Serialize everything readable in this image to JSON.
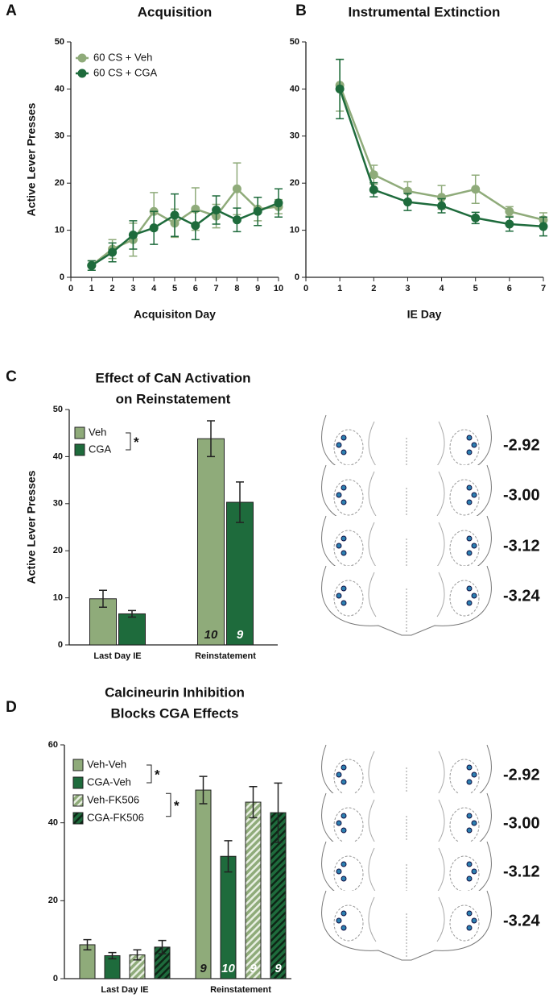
{
  "chart_data": [
    {
      "type": "line",
      "panel": "A",
      "title": "Acquisition",
      "x_label": "Acquisiton Day",
      "y_label": "Active Lever Presses",
      "x": [
        1,
        2,
        3,
        4,
        5,
        6,
        7,
        8,
        9,
        10
      ],
      "xlim": [
        0,
        10
      ],
      "xticks": [
        0,
        1,
        2,
        3,
        4,
        5,
        6,
        7,
        8,
        9,
        10
      ],
      "ylim": [
        0,
        50
      ],
      "yticks": [
        0,
        10,
        20,
        30,
        40,
        50
      ],
      "legend": "upper left",
      "series": [
        {
          "name": "60 CS + Veh",
          "color": "#8fab7a",
          "values": [
            2.5,
            6,
            8,
            14,
            11.5,
            14.5,
            13,
            18.8,
            14.5,
            15
          ],
          "errors": [
            1,
            2,
            3.5,
            4,
            3,
            4.5,
            2.5,
            5.5,
            2.5,
            1.5
          ]
        },
        {
          "name": "60 CS + CGA",
          "color": "#1e6b3c",
          "values": [
            2.5,
            5.3,
            9,
            10.5,
            13.2,
            11,
            14.3,
            12.2,
            14,
            15.8
          ],
          "errors": [
            1,
            2,
            3,
            3.5,
            4.5,
            3,
            3,
            2.5,
            3,
            3
          ]
        }
      ]
    },
    {
      "type": "line",
      "panel": "B",
      "title": "Instrumental Extinction",
      "x_label": "IE Day",
      "x": [
        1,
        2,
        3,
        4,
        5,
        6,
        7
      ],
      "xlim": [
        0,
        7
      ],
      "xticks": [
        0,
        1,
        2,
        3,
        4,
        5,
        6,
        7
      ],
      "ylim": [
        0,
        50
      ],
      "yticks": [
        0,
        10,
        20,
        30,
        40,
        50
      ],
      "series": [
        {
          "color": "#8fab7a",
          "values": [
            40.8,
            21.8,
            18.3,
            17,
            18.7,
            14,
            12.2
          ],
          "errors": [
            5.5,
            2,
            2,
            2.5,
            3,
            1,
            1.5
          ]
        },
        {
          "color": "#1e6b3c",
          "values": [
            40,
            18.6,
            16,
            15.2,
            12.6,
            11.3,
            10.8
          ],
          "errors": [
            6.3,
            1.5,
            1.8,
            1.5,
            1.2,
            1.5,
            2
          ]
        }
      ]
    },
    {
      "type": "bar",
      "panel": "C",
      "title": [
        "Effect of CaN Activation",
        "on  Reinstatement"
      ],
      "y_label": "Active Lever  Presses",
      "categories": [
        "Last Day IE",
        "Reinstatement"
      ],
      "ylim": [
        0,
        50
      ],
      "yticks": [
        0,
        10,
        20,
        30,
        40,
        50
      ],
      "legend": "upper left",
      "series": [
        {
          "name": "Veh",
          "color": "#8fab7a",
          "hatch": false,
          "values": [
            9.8,
            43.8
          ],
          "errors": [
            1.8,
            3.8
          ],
          "n_labels": [
            null,
            "10"
          ],
          "n_label_color": "#1a1a1a"
        },
        {
          "name": "CGA",
          "color": "#1e6b3c",
          "hatch": false,
          "values": [
            6.6,
            30.3
          ],
          "errors": [
            0.7,
            4.3
          ],
          "n_labels": [
            null,
            "9"
          ],
          "n_label_color": "#ffffff"
        }
      ],
      "annotations": [
        "*"
      ],
      "sections": [
        "-2.92",
        "-3.00",
        "-3.12",
        "-3.24"
      ]
    },
    {
      "type": "bar",
      "panel": "D",
      "title": [
        "Calcineurin Inhibition",
        "Blocks CGA Effects"
      ],
      "categories": [
        "Last Day IE",
        "Reinstatement"
      ],
      "ylim": [
        0,
        60
      ],
      "yticks": [
        0,
        20,
        40,
        60
      ],
      "legend": "upper left",
      "series": [
        {
          "name": "Veh-Veh",
          "color": "#8fab7a",
          "hatch": false,
          "values": [
            8.7,
            48.4
          ],
          "errors": [
            1.3,
            3.5
          ],
          "n_labels": [
            null,
            "9"
          ],
          "n_label_color": "#1a1a1a"
        },
        {
          "name": "CGA-Veh",
          "color": "#1e6b3c",
          "hatch": false,
          "values": [
            5.9,
            31.4
          ],
          "errors": [
            0.8,
            4
          ],
          "n_labels": [
            null,
            "10"
          ],
          "n_label_color": "#ffffff"
        },
        {
          "name": "Veh-FK506",
          "color": "#8fab7a",
          "hatch": true,
          "values": [
            6.1,
            45.3
          ],
          "errors": [
            1.3,
            4
          ],
          "n_labels": [
            null,
            "9"
          ],
          "n_label_color": "#ffffff"
        },
        {
          "name": "CGA-FK506",
          "color": "#1e6b3c",
          "hatch": true,
          "values": [
            8.1,
            42.6
          ],
          "errors": [
            1.7,
            7.6
          ],
          "n_labels": [
            null,
            "9"
          ],
          "n_label_color": "#ffffff"
        }
      ],
      "annotations": [
        "*",
        "*"
      ],
      "sections": [
        "-2.92",
        "-3.00",
        "-3.12",
        "-3.24"
      ]
    }
  ]
}
